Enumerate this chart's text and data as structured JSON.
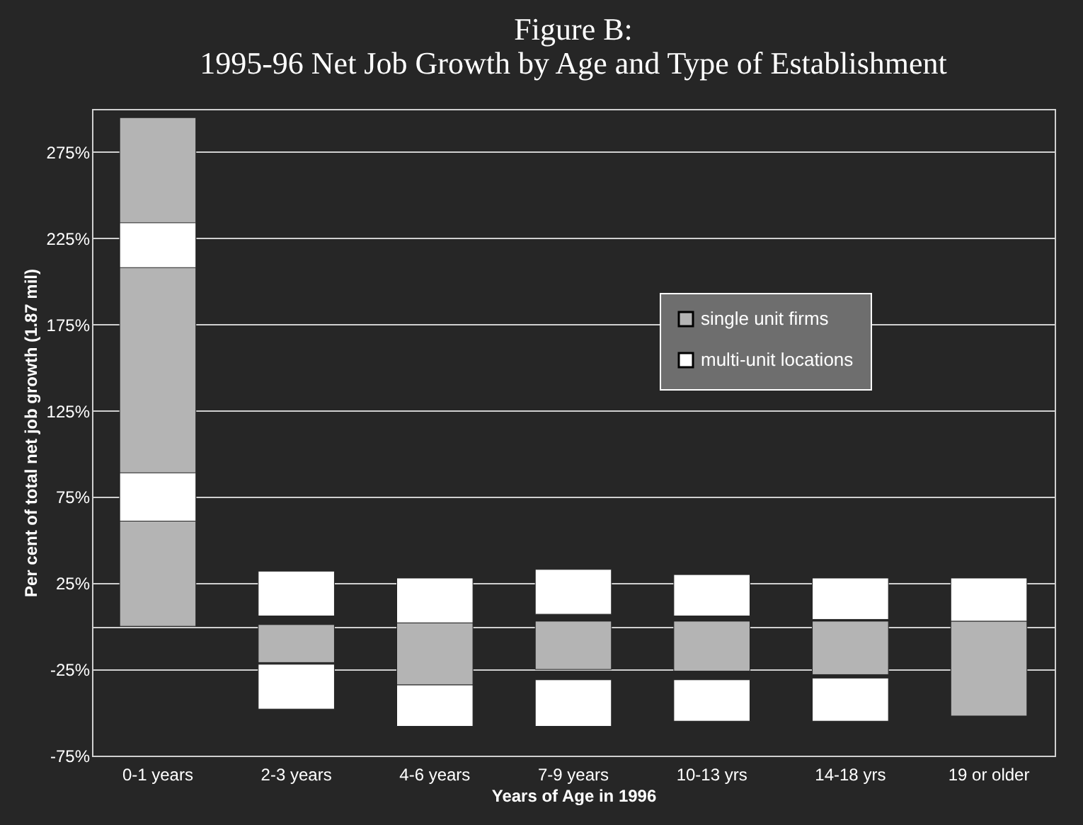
{
  "chart_data": {
    "type": "bar",
    "title": "Figure B:\n1995-96 Net Job Growth by Age and Type of Establishment",
    "xlabel": "Years of Age in 1996",
    "ylabel": "Per cent of total net job growth (1.87 mil)",
    "categories": [
      "0-1 years",
      "2-3 years",
      "4-6 years",
      "7-9 years",
      "10-13 yrs",
      "14-18 yrs",
      "19 or older"
    ],
    "series": [
      {
        "name": "single unit firms",
        "color": "#b4b4b4",
        "base": [
          0,
          1,
          2,
          3,
          3,
          3,
          3
        ],
        "values": [
          295,
          -22,
          -36,
          -28,
          -29,
          -31,
          -55
        ]
      },
      {
        "name": "multi-unit locations",
        "color": "#ffffff",
        "base": [
          208,
          6,
          2,
          7,
          6,
          4,
          3
        ],
        "values": [
          26,
          26,
          26,
          26,
          24,
          24,
          25
        ]
      },
      {
        "color": "#ffffff",
        "base": [
          61,
          -22,
          -34,
          -31,
          -31,
          -30,
          null
        ],
        "values": [
          28,
          -26,
          -24,
          -27,
          -24,
          -25,
          null
        ]
      }
    ],
    "ylim": [
      -75,
      300
    ],
    "yticks": [
      {
        "value": -75,
        "label": "-75%"
      },
      {
        "value": -25,
        "label": "-25%"
      },
      {
        "value": 0,
        "label": null
      },
      {
        "value": 25,
        "label": "25%"
      },
      {
        "value": 75,
        "label": "75%"
      },
      {
        "value": 125,
        "label": "125%"
      },
      {
        "value": 175,
        "label": "175%"
      },
      {
        "value": 225,
        "label": "225%"
      },
      {
        "value": 275,
        "label": "275%"
      }
    ],
    "grid": true,
    "legend": "top right"
  }
}
